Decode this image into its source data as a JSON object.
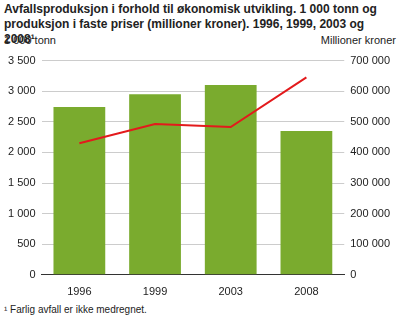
{
  "chart_data": {
    "type": "bar",
    "title": [
      "Avfallsproduksjon i forhold til økonomisk utvikling. 1 000 tonn og",
      "produksjon i faste priser (millioner kroner). 1996, 1999, 2003 og 2008¹"
    ],
    "y_label": "1 000 tonn",
    "y2_label": "Millioner kroner",
    "footnote": "¹ Farlig avfall er ikke medregnet.",
    "categories": [
      "1996",
      "1999",
      "2003",
      "2008"
    ],
    "series": [
      {
        "type": "bar",
        "color": "#7aab2e",
        "values": [
          2740,
          2950,
          3100,
          2350
        ]
      },
      {
        "type": "line",
        "color": "#e31a1c",
        "marker": "none",
        "axis": "y2",
        "values": [
          430000,
          493000,
          483000,
          645000
        ]
      }
    ],
    "ylim": [
      0,
      3500
    ],
    "yticks": [
      0,
      500,
      {
        "value": 1000,
        "label": "1 000"
      },
      {
        "value": 1500,
        "label": "1 500"
      },
      {
        "value": 2000,
        "label": "2 000"
      },
      {
        "value": 2500,
        "label": "2 500"
      },
      {
        "value": 3000,
        "label": "3 000"
      },
      {
        "value": 3500,
        "label": "3 500"
      }
    ],
    "y2lim": [
      0,
      700000
    ],
    "y2ticks": [
      0,
      {
        "value": 100000,
        "label": "100 000"
      },
      {
        "value": 200000,
        "label": "200 000"
      },
      {
        "value": 300000,
        "label": "300 000"
      },
      {
        "value": 400000,
        "label": "400 000"
      },
      {
        "value": 500000,
        "label": "500 000"
      },
      {
        "value": 600000,
        "label": "600 000"
      },
      {
        "value": 700000,
        "label": "700 000"
      }
    ],
    "grid": true
  }
}
